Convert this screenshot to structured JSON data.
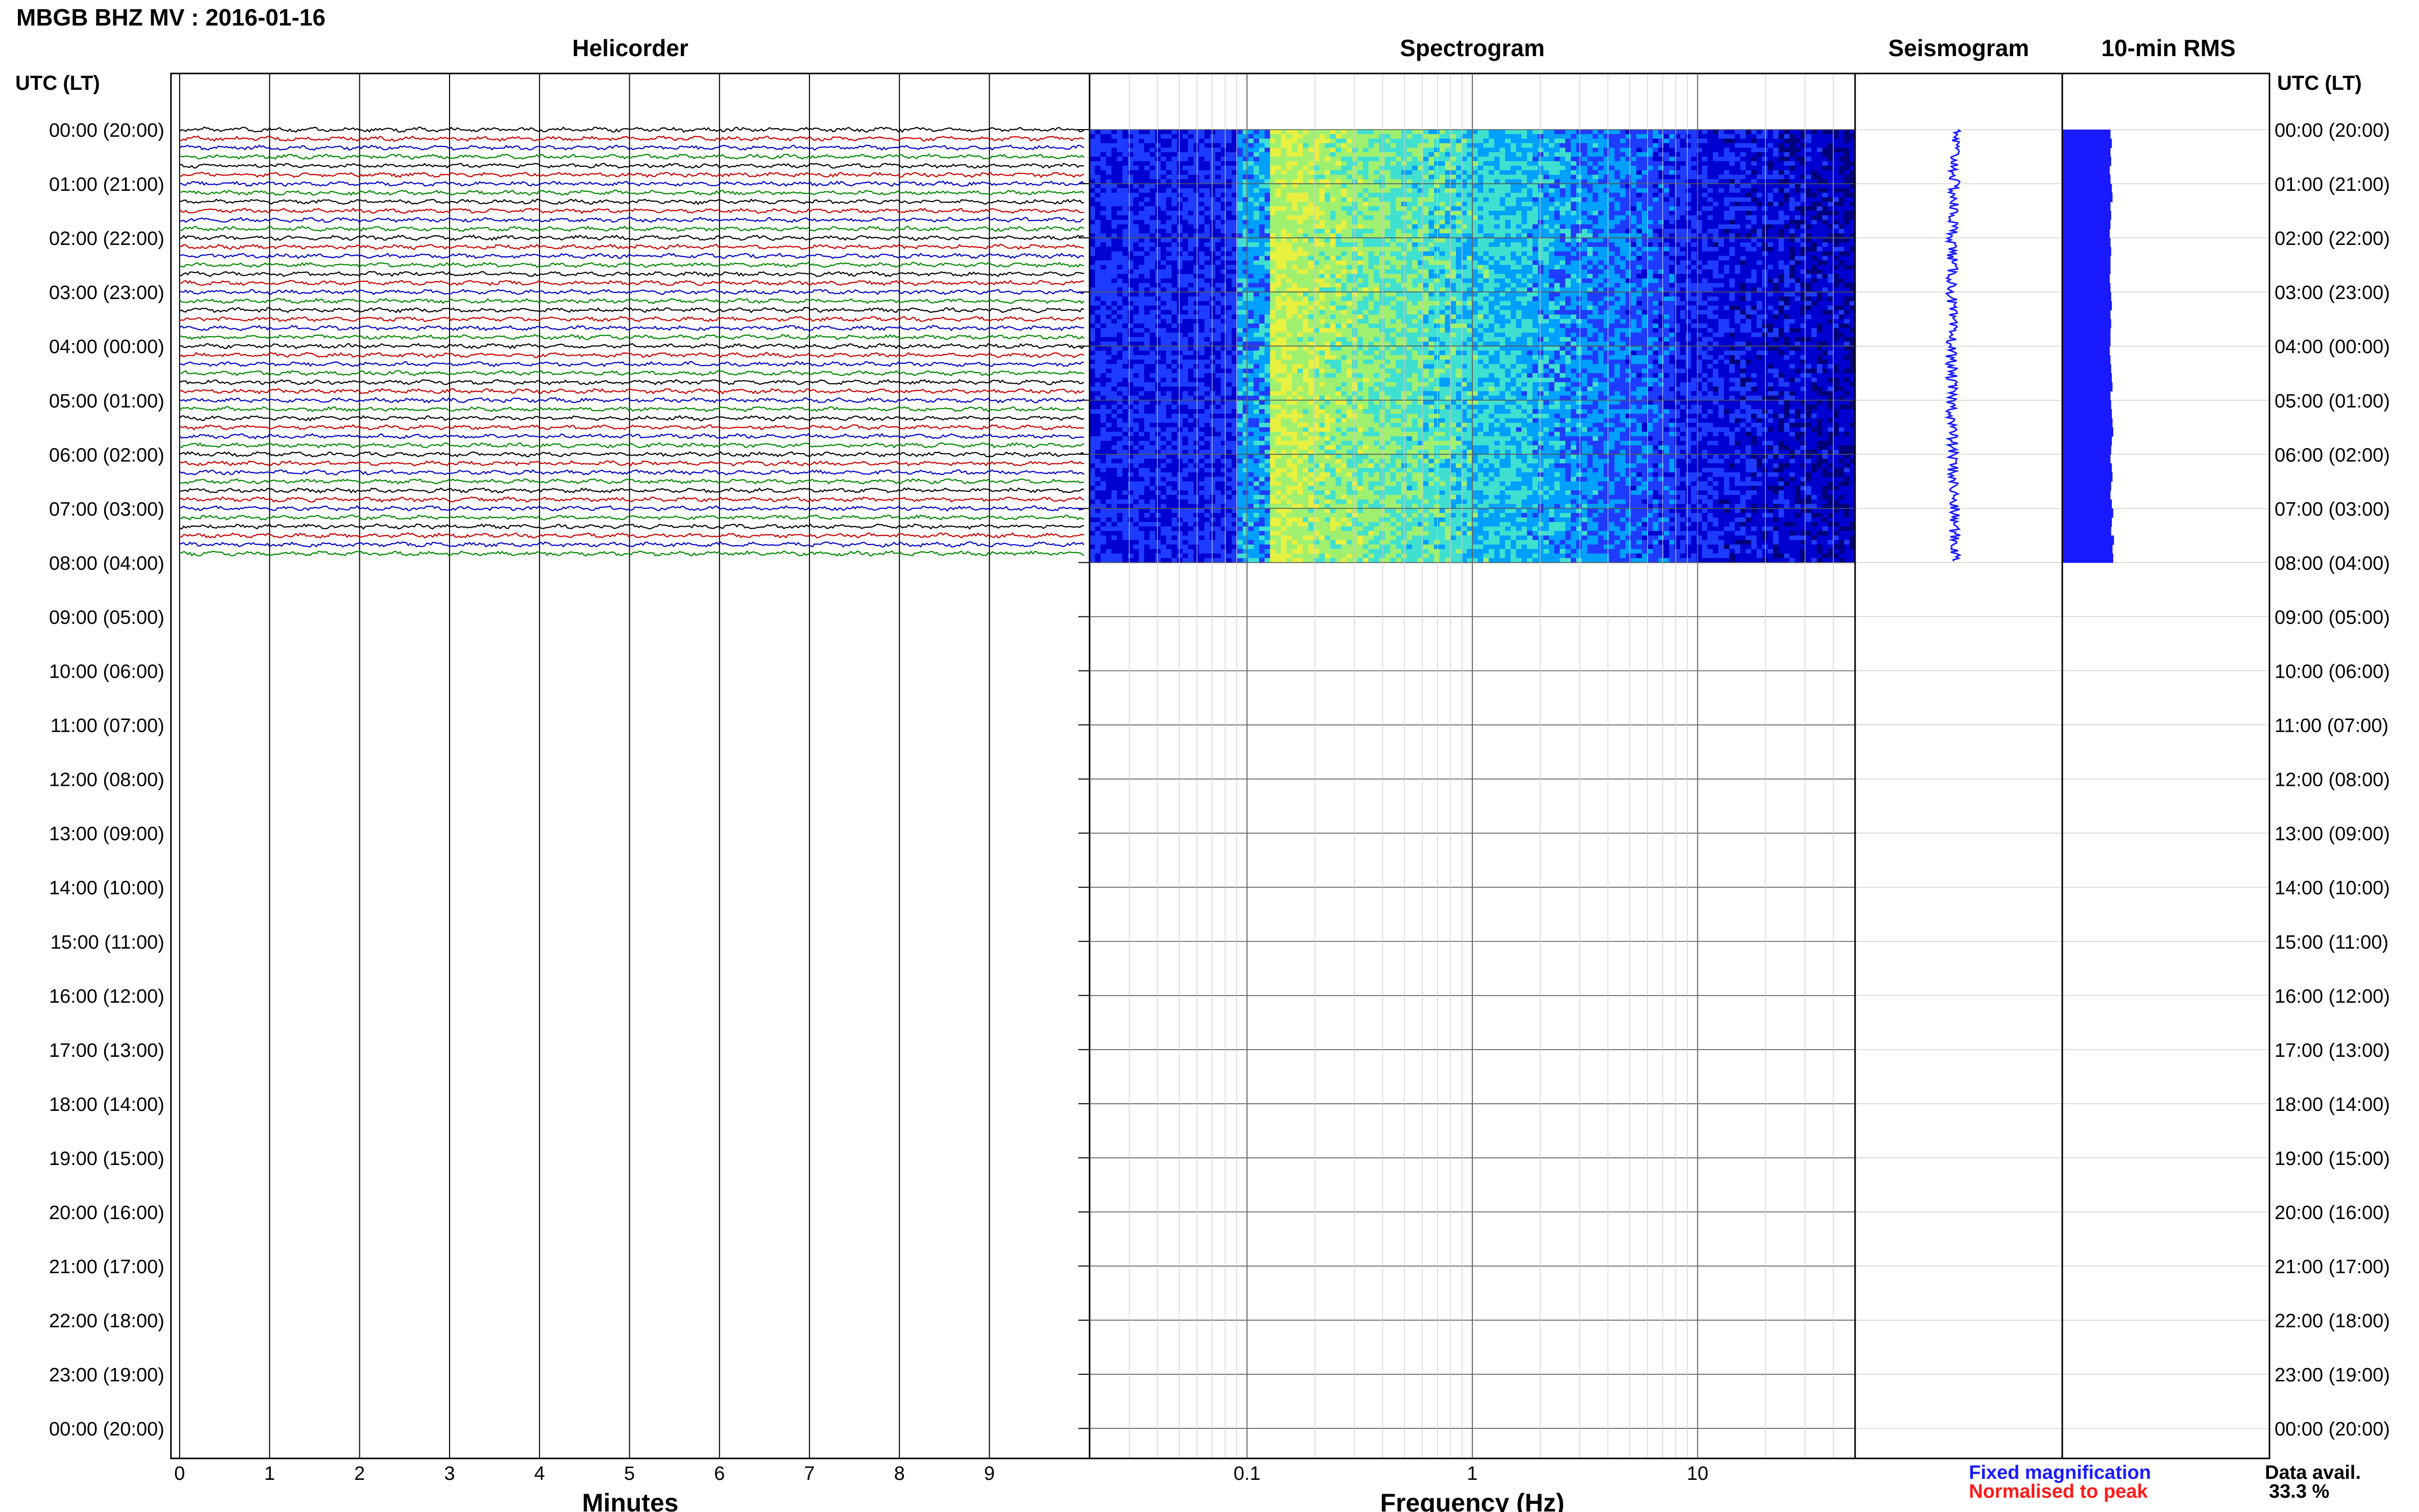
{
  "title": "MBGB BHZ MV : 2016-01-16",
  "panels": {
    "helicorder": "Helicorder",
    "spectrogram": "Spectrogram",
    "seismogram": "Seismogram",
    "rms": "10-min RMS"
  },
  "time_axis_label": "UTC (LT)",
  "time_labels": [
    "00:00 (20:00)",
    "01:00 (21:00)",
    "02:00 (22:00)",
    "03:00 (23:00)",
    "04:00 (00:00)",
    "05:00 (01:00)",
    "06:00 (02:00)",
    "07:00 (03:00)",
    "08:00 (04:00)",
    "09:00 (05:00)",
    "10:00 (06:00)",
    "11:00 (07:00)",
    "12:00 (08:00)",
    "13:00 (09:00)",
    "14:00 (10:00)",
    "15:00 (11:00)",
    "16:00 (12:00)",
    "17:00 (13:00)",
    "18:00 (14:00)",
    "19:00 (15:00)",
    "20:00 (16:00)",
    "21:00 (17:00)",
    "22:00 (18:00)",
    "23:00 (19:00)",
    "00:00 (20:00)"
  ],
  "helicorder_axis": {
    "label": "Minutes",
    "ticks": [
      "0",
      "1",
      "2",
      "3",
      "4",
      "5",
      "6",
      "7",
      "8",
      "9"
    ]
  },
  "spectrogram_axis": {
    "label": "Frequency (Hz)",
    "ticks": [
      "0.1",
      "1",
      "10"
    ]
  },
  "legend": {
    "fixed": "Fixed magnification",
    "normalised": "Normalised to peak",
    "fixed_color": "#1a1aff",
    "normalised_color": "#ff1a1a"
  },
  "availability": {
    "label": "Data avail.",
    "value": "33.3 %"
  },
  "chart_data": {
    "type": "heatmap",
    "time_range_hours": [
      0,
      24
    ],
    "data_end_hour": 8,
    "helicorder": {
      "trace_minutes": 10,
      "x_range_minutes": [
        0,
        10
      ],
      "trace_colors": [
        "#000000",
        "#cc0000",
        "#0000cc",
        "#008800"
      ],
      "traces_with_data": 48
    },
    "spectrogram": {
      "xscale": "log",
      "x_range_hz": [
        0.02,
        50
      ],
      "colormap": [
        "#00007a",
        "#0000d0",
        "#1e3cff",
        "#00a0ff",
        "#40e0d0",
        "#a0f070",
        "#e8f040"
      ],
      "peak_band_hz": [
        0.13,
        0.3
      ]
    },
    "seismogram_color": "#1a1aff",
    "rms_color": "#1a1aff",
    "rms_10min": [
      0.7,
      0.72,
      0.7,
      0.71,
      0.69,
      0.7,
      0.72,
      0.73,
      0.7,
      0.71,
      0.7,
      0.69,
      0.7,
      0.71,
      0.7,
      0.7,
      0.69,
      0.7,
      0.71,
      0.72,
      0.7,
      0.71,
      0.7,
      0.7,
      0.69,
      0.7,
      0.71,
      0.72,
      0.73,
      0.7,
      0.71,
      0.72,
      0.73,
      0.74,
      0.72,
      0.71,
      0.7,
      0.72,
      0.73,
      0.71,
      0.7,
      0.72,
      0.74,
      0.72,
      0.71,
      0.75,
      0.73,
      0.74
    ]
  }
}
